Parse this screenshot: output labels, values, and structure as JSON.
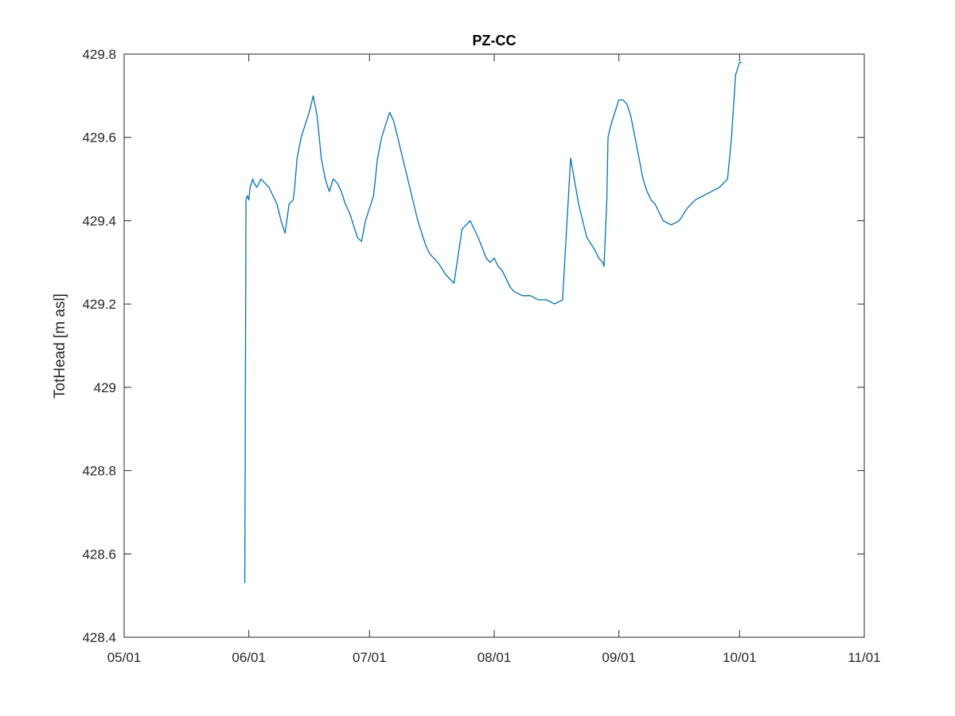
{
  "chart_data": {
    "type": "line",
    "title": "PZ-CC",
    "xlabel": "",
    "ylabel": "TotHead [m asl]",
    "x_ticks": [
      "05/01",
      "06/01",
      "07/01",
      "08/01",
      "09/01",
      "10/01",
      "11/01"
    ],
    "y_ticks": [
      "428.4",
      "428.6",
      "428.8",
      "429",
      "429.2",
      "429.4",
      "429.6",
      "429.8"
    ],
    "xlim": [
      "05/01",
      "11/01"
    ],
    "ylim": [
      428.4,
      429.8
    ],
    "grid": false,
    "legend": "none",
    "series": [
      {
        "color": "#0072BD",
        "x": [
          "05/31",
          "05/31",
          "05/31",
          "06/01",
          "06/01",
          "06/02",
          "06/02",
          "06/03",
          "06/04",
          "06/05",
          "06/06",
          "06/07",
          "06/08",
          "06/09",
          "06/10",
          "06/11",
          "06/12",
          "06/12",
          "06/13",
          "06/14",
          "06/15",
          "06/16",
          "06/17",
          "06/18",
          "06/19",
          "06/20",
          "06/21",
          "06/22",
          "06/23",
          "06/24",
          "06/25",
          "06/26",
          "06/27",
          "06/28",
          "06/29",
          "06/30",
          "07/01",
          "07/02",
          "07/03",
          "07/04",
          "07/05",
          "07/06",
          "07/07",
          "07/08",
          "07/09",
          "07/10",
          "07/11",
          "07/12",
          "07/13",
          "07/14",
          "07/15",
          "07/16",
          "07/18",
          "07/20",
          "07/22",
          "07/24",
          "07/26",
          "07/28",
          "07/30",
          "07/31",
          "08/01",
          "08/02",
          "08/03",
          "08/04",
          "08/05",
          "08/06",
          "08/08",
          "08/10",
          "08/12",
          "08/14",
          "08/16",
          "08/18",
          "08/20",
          "08/22",
          "08/24",
          "08/26",
          "08/27",
          "08/28",
          "08/28",
          "08/29",
          "08/29",
          "08/30",
          "08/31",
          "09/01",
          "09/02",
          "09/03",
          "09/04",
          "09/05",
          "09/06",
          "09/07",
          "09/08",
          "09/09",
          "09/10",
          "09/11",
          "09/12",
          "09/14",
          "09/16",
          "09/18",
          "09/20",
          "09/22",
          "09/24",
          "09/26",
          "09/28",
          "09/29",
          "09/30",
          "10/01",
          "10/01",
          "10/01"
        ],
        "y": [
          428.53,
          429.45,
          429.46,
          429.45,
          429.48,
          429.5,
          429.49,
          429.48,
          429.5,
          429.49,
          429.48,
          429.46,
          429.44,
          429.4,
          429.37,
          429.44,
          429.45,
          429.47,
          429.55,
          429.6,
          429.63,
          429.66,
          429.7,
          429.65,
          429.55,
          429.5,
          429.47,
          429.5,
          429.49,
          429.47,
          429.44,
          429.42,
          429.39,
          429.36,
          429.35,
          429.4,
          429.43,
          429.46,
          429.55,
          429.6,
          429.63,
          429.66,
          429.64,
          429.6,
          429.56,
          429.52,
          429.48,
          429.44,
          429.4,
          429.37,
          429.34,
          429.32,
          429.3,
          429.27,
          429.25,
          429.38,
          429.4,
          429.36,
          429.31,
          429.3,
          429.31,
          429.29,
          429.28,
          429.26,
          429.24,
          429.23,
          429.22,
          429.22,
          429.21,
          429.21,
          429.2,
          429.21,
          429.55,
          429.44,
          429.36,
          429.33,
          429.31,
          429.3,
          429.29,
          429.45,
          429.6,
          429.63,
          429.66,
          429.69,
          429.69,
          429.68,
          429.65,
          429.6,
          429.55,
          429.5,
          429.47,
          429.45,
          429.44,
          429.42,
          429.4,
          429.39,
          429.4,
          429.43,
          429.45,
          429.46,
          429.47,
          429.48,
          429.5,
          429.6,
          429.75,
          429.78,
          429.78,
          429.78
        ]
      }
    ]
  }
}
